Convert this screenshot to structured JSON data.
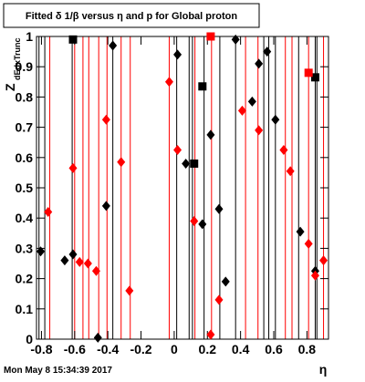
{
  "chart_data": {
    "type": "scatter",
    "title": "Fitted δ 1/β versus η and p for Global proton",
    "x_label": "η",
    "y_label": "Z",
    "y_label_sub": "dEdxTrunc",
    "footer": "Mon May  8 15:34:39 2017",
    "xlim": [
      -0.83,
      0.93
    ],
    "ylim": [
      0,
      1
    ],
    "xticks": [
      -0.8,
      -0.6,
      -0.4,
      -0.2,
      0,
      0.2,
      0.4,
      0.6,
      0.8
    ],
    "yticks": [
      0,
      0.1,
      0.2,
      0.3,
      0.4,
      0.5,
      0.6,
      0.7,
      0.8,
      0.9,
      1
    ],
    "vlines": [
      {
        "color": "#000000",
        "x": [
          -0.815,
          -0.78,
          -0.615,
          -0.37,
          0.015,
          0.09,
          0.11,
          0.18,
          0.275,
          0.37,
          0.54,
          0.57,
          0.61,
          0.75,
          0.85,
          0.86
        ]
      },
      {
        "color": "#ff0000",
        "x": [
          -0.75,
          -0.6,
          -0.55,
          -0.515,
          -0.455,
          -0.405,
          -0.32,
          -0.265,
          -0.03,
          0.125,
          0.225,
          0.43,
          0.505,
          0.67,
          0.71,
          0.81,
          0.9
        ]
      }
    ],
    "series": [
      {
        "color": "#000000",
        "marker": "diamond",
        "x": [
          -0.805,
          -0.66,
          -0.61,
          -0.46,
          -0.41,
          -0.37,
          0.02,
          0.07,
          0.17,
          0.22,
          0.27,
          0.31,
          0.37,
          0.47,
          0.51,
          0.56,
          0.61,
          0.76,
          0.85
        ],
        "values": [
          0.29,
          0.26,
          0.28,
          0.005,
          0.44,
          0.97,
          0.94,
          0.58,
          0.38,
          0.675,
          0.43,
          0.19,
          0.99,
          0.785,
          0.91,
          0.95,
          0.725,
          0.355,
          0.225
        ]
      },
      {
        "color": "#ff0000",
        "marker": "diamond",
        "x": [
          -0.76,
          -0.61,
          -0.57,
          -0.52,
          -0.47,
          -0.41,
          -0.32,
          -0.27,
          -0.03,
          0.02,
          0.12,
          0.22,
          0.27,
          0.41,
          0.51,
          0.66,
          0.7,
          0.81,
          0.85,
          0.9
        ],
        "values": [
          0.42,
          0.565,
          0.255,
          0.25,
          0.225,
          0.725,
          0.585,
          0.16,
          0.85,
          0.625,
          0.39,
          0.015,
          0.13,
          0.755,
          0.69,
          0.625,
          0.555,
          0.315,
          0.21,
          0.26
        ]
      },
      {
        "color": "#000000",
        "marker": "square",
        "x": [
          -0.61,
          0.12,
          0.17,
          0.85
        ],
        "values": [
          0.99,
          0.58,
          0.835,
          0.865
        ]
      },
      {
        "color": "#ff0000",
        "marker": "square",
        "x": [
          0.22,
          0.81
        ],
        "values": [
          1.0,
          0.88
        ]
      }
    ]
  }
}
